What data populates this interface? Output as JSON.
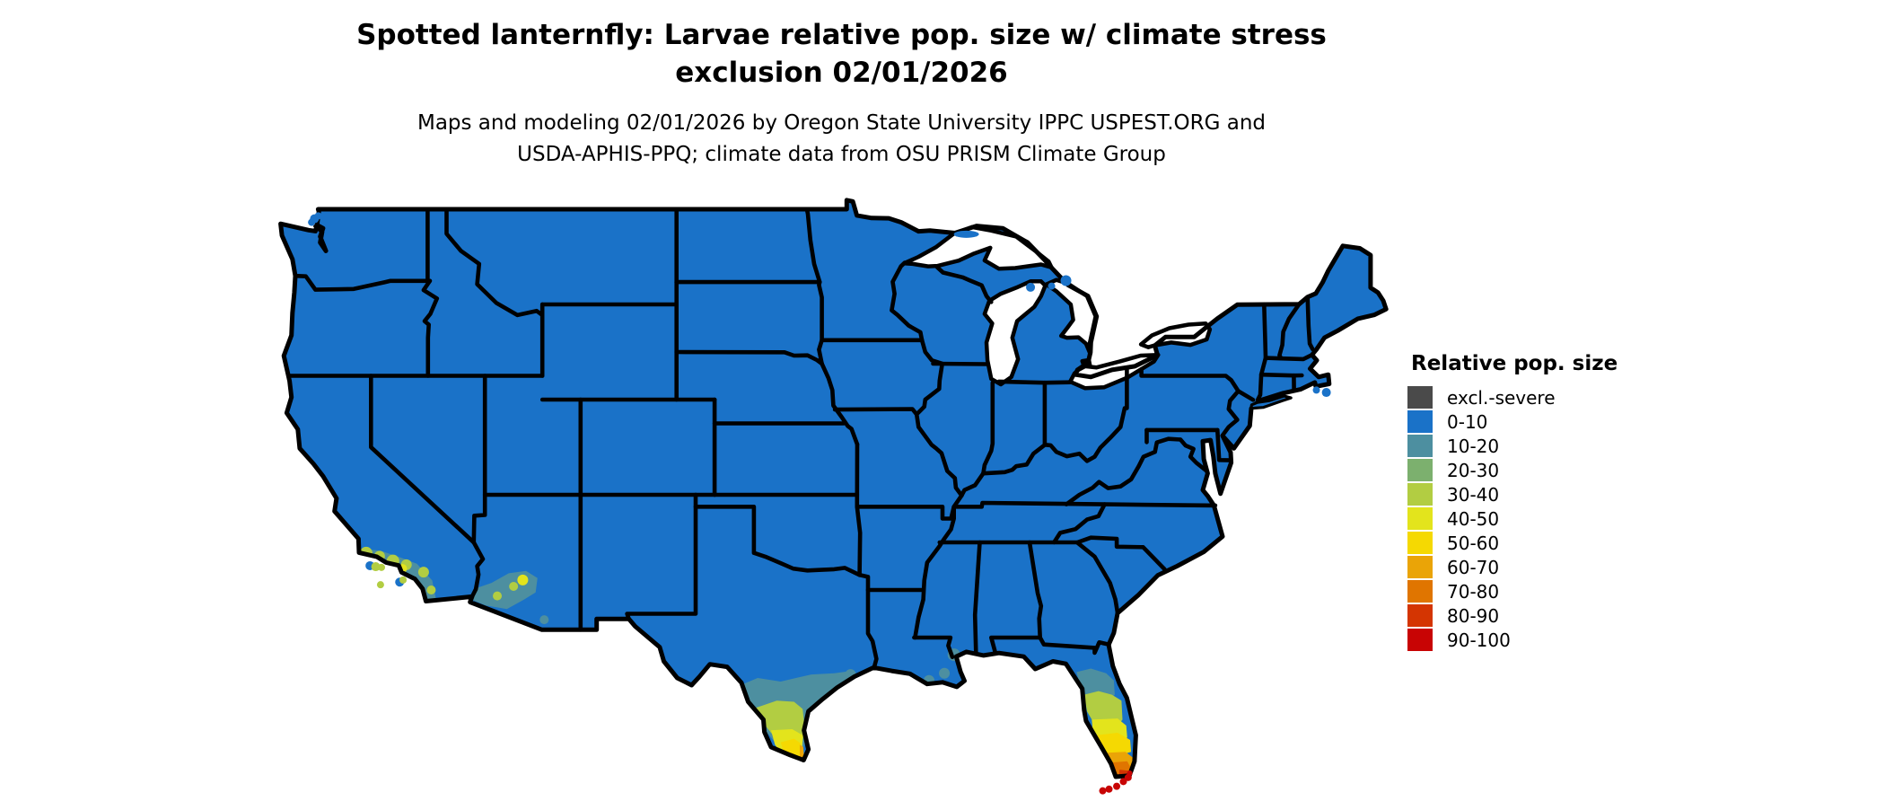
{
  "title": {
    "lines": [
      "Spotted lanternfly: Larvae relative pop. size w/ climate stress",
      "exclusion 02/01/2026"
    ]
  },
  "subtitle": {
    "lines": [
      "Maps and modeling 02/01/2026 by Oregon State University IPPC USPEST.ORG and",
      "USDA-APHIS-PPQ; climate data from OSU PRISM Climate Group"
    ]
  },
  "legend": {
    "title": "Relative pop. size",
    "items": [
      {
        "label": "excl.-severe",
        "color": "#4a4a4a"
      },
      {
        "label": "0-10",
        "color": "#1a72c8"
      },
      {
        "label": "10-20",
        "color": "#4d8fa0"
      },
      {
        "label": "20-30",
        "color": "#7cb06e"
      },
      {
        "label": "30-40",
        "color": "#b2cd42"
      },
      {
        "label": "40-50",
        "color": "#e3e41c"
      },
      {
        "label": "50-60",
        "color": "#f5d902"
      },
      {
        "label": "60-70",
        "color": "#eaa407"
      },
      {
        "label": "70-80",
        "color": "#e07500"
      },
      {
        "label": "80-90",
        "color": "#d43502"
      },
      {
        "label": "90-100",
        "color": "#c80404"
      }
    ]
  },
  "map_data": {
    "type": "choropleth_map",
    "region": "Contiguous United States",
    "projection": "unprojected lat/lon",
    "border_color": "#000000",
    "water_background": "#ffffff",
    "dominant_class": "0-10",
    "hotspots": [
      {
        "area": "Southern California coastal basin & Channel Islands",
        "classes": "10-20 with 30-50 speckles"
      },
      {
        "area": "Southwestern Arizona (Yuma to Phoenix)",
        "classes": "10-20 with 30-50 speckles"
      },
      {
        "area": "South Texas / Rio Grande Valley to Coastal Bend",
        "classes": "10-20, 30-40, 40-60, 60-70 at tip"
      },
      {
        "area": "Louisiana / Mississippi Gulf coast",
        "classes": "10-20 patches"
      },
      {
        "area": "Central Florida",
        "classes": "10-20 to 40-50 bands"
      },
      {
        "area": "South Florida",
        "classes": "50-60 to 80-90"
      },
      {
        "area": "Florida Keys & extreme southern tip",
        "classes": "90-100"
      }
    ]
  }
}
